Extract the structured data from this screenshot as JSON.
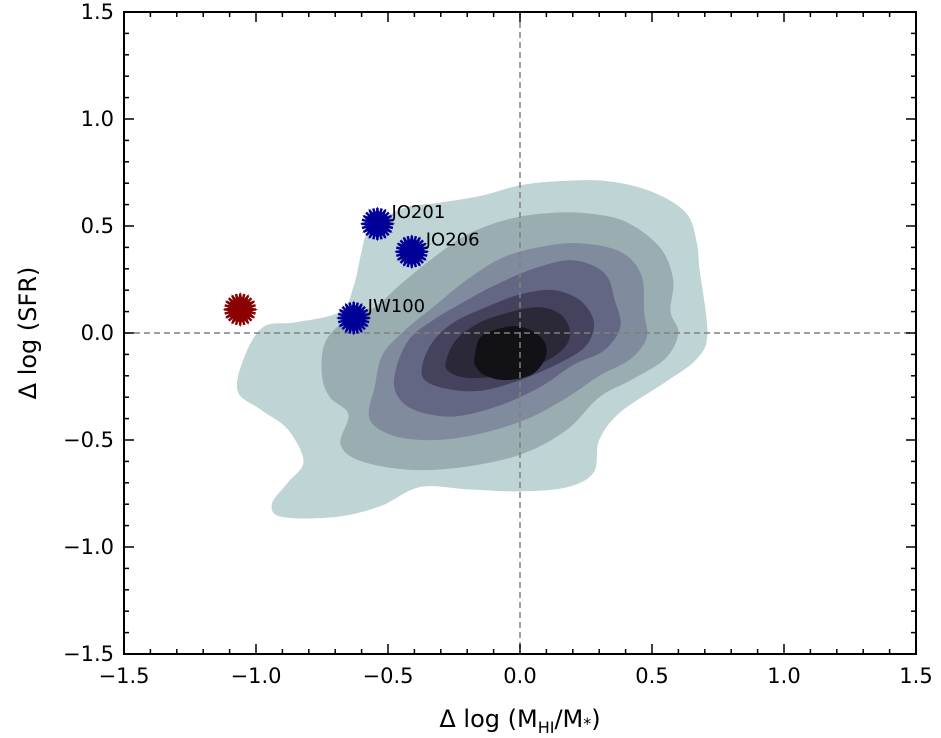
{
  "chart_data": {
    "type": "scatter",
    "title": "",
    "xlabel": {
      "prefix": "Δ log (M",
      "sub": "HI",
      "suffix": "/M",
      "sub2": "*",
      "close": ")"
    },
    "ylabel": "Δ log (SFR)",
    "xlim": [
      -1.5,
      1.5
    ],
    "ylim": [
      -1.5,
      1.5
    ],
    "xticks": [
      -1.5,
      -1.0,
      -0.5,
      0.0,
      0.5,
      1.0,
      1.5
    ],
    "yticks": [
      -1.5,
      -1.0,
      -0.5,
      0.0,
      0.5,
      1.0,
      1.5
    ],
    "xtick_labels": [
      "−1.5",
      "−1.0",
      "−0.5",
      "0.0",
      "0.5",
      "1.0",
      "1.5"
    ],
    "ytick_labels": [
      "−1.5",
      "−1.0",
      "−0.5",
      "0.0",
      "0.5",
      "1.0",
      "1.5"
    ],
    "reference_lines": {
      "x": 0.0,
      "y": 0.0,
      "style": "dashed",
      "color": "#808080"
    },
    "contour_colors": [
      "#bfd4d4",
      "#9aadb1",
      "#808b9d",
      "#646783",
      "#45425d",
      "#2b2837",
      "#121115"
    ],
    "contour_levels": [
      {
        "level": 1,
        "polygon": [
          [
            -1.07,
            -0.27
          ],
          [
            -1.04,
            -0.1
          ],
          [
            -0.97,
            0.03
          ],
          [
            -0.85,
            0.05
          ],
          [
            -0.68,
            0.1
          ],
          [
            -0.63,
            0.22
          ],
          [
            -0.6,
            0.38
          ],
          [
            -0.57,
            0.48
          ],
          [
            -0.45,
            0.58
          ],
          [
            -0.3,
            0.61
          ],
          [
            -0.15,
            0.64
          ],
          [
            0.0,
            0.69
          ],
          [
            0.15,
            0.71
          ],
          [
            0.33,
            0.71
          ],
          [
            0.5,
            0.66
          ],
          [
            0.63,
            0.56
          ],
          [
            0.67,
            0.42
          ],
          [
            0.68,
            0.3
          ],
          [
            0.71,
            0.0
          ],
          [
            0.67,
            -0.12
          ],
          [
            0.55,
            -0.23
          ],
          [
            0.38,
            -0.37
          ],
          [
            0.3,
            -0.5
          ],
          [
            0.28,
            -0.65
          ],
          [
            0.18,
            -0.72
          ],
          [
            0.0,
            -0.74
          ],
          [
            -0.2,
            -0.73
          ],
          [
            -0.38,
            -0.72
          ],
          [
            -0.53,
            -0.81
          ],
          [
            -0.7,
            -0.86
          ],
          [
            -0.9,
            -0.86
          ],
          [
            -0.94,
            -0.8
          ],
          [
            -0.88,
            -0.7
          ],
          [
            -0.82,
            -0.6
          ],
          [
            -0.88,
            -0.45
          ],
          [
            -0.98,
            -0.36
          ]
        ]
      },
      {
        "level": 2,
        "polygon": [
          [
            -0.75,
            -0.2
          ],
          [
            -0.74,
            -0.05
          ],
          [
            -0.67,
            0.05
          ],
          [
            -0.55,
            0.12
          ],
          [
            -0.45,
            0.23
          ],
          [
            -0.33,
            0.35
          ],
          [
            -0.2,
            0.46
          ],
          [
            -0.05,
            0.53
          ],
          [
            0.1,
            0.56
          ],
          [
            0.25,
            0.56
          ],
          [
            0.4,
            0.52
          ],
          [
            0.53,
            0.4
          ],
          [
            0.58,
            0.25
          ],
          [
            0.57,
            0.1
          ],
          [
            0.6,
            0.0
          ],
          [
            0.55,
            -0.12
          ],
          [
            0.42,
            -0.22
          ],
          [
            0.3,
            -0.3
          ],
          [
            0.18,
            -0.45
          ],
          [
            0.02,
            -0.56
          ],
          [
            -0.18,
            -0.62
          ],
          [
            -0.4,
            -0.64
          ],
          [
            -0.6,
            -0.6
          ],
          [
            -0.68,
            -0.52
          ],
          [
            -0.65,
            -0.38
          ],
          [
            -0.72,
            -0.3
          ]
        ]
      },
      {
        "level": 3,
        "polygon": [
          [
            -0.55,
            -0.25
          ],
          [
            -0.52,
            -0.1
          ],
          [
            -0.43,
            0.02
          ],
          [
            -0.32,
            0.13
          ],
          [
            -0.2,
            0.25
          ],
          [
            -0.07,
            0.35
          ],
          [
            0.07,
            0.4
          ],
          [
            0.22,
            0.42
          ],
          [
            0.38,
            0.38
          ],
          [
            0.46,
            0.27
          ],
          [
            0.47,
            0.1
          ],
          [
            0.48,
            -0.02
          ],
          [
            0.42,
            -0.12
          ],
          [
            0.3,
            -0.2
          ],
          [
            0.18,
            -0.3
          ],
          [
            0.03,
            -0.4
          ],
          [
            -0.15,
            -0.47
          ],
          [
            -0.32,
            -0.5
          ],
          [
            -0.48,
            -0.48
          ],
          [
            -0.57,
            -0.4
          ]
        ]
      },
      {
        "level": 4,
        "polygon": [
          [
            -0.47,
            -0.17
          ],
          [
            -0.42,
            -0.03
          ],
          [
            -0.33,
            0.06
          ],
          [
            -0.22,
            0.14
          ],
          [
            -0.1,
            0.22
          ],
          [
            0.05,
            0.3
          ],
          [
            0.2,
            0.34
          ],
          [
            0.32,
            0.28
          ],
          [
            0.36,
            0.15
          ],
          [
            0.38,
            0.03
          ],
          [
            0.32,
            -0.08
          ],
          [
            0.2,
            -0.15
          ],
          [
            0.08,
            -0.25
          ],
          [
            -0.08,
            -0.34
          ],
          [
            -0.25,
            -0.39
          ],
          [
            -0.4,
            -0.36
          ],
          [
            -0.47,
            -0.28
          ]
        ]
      },
      {
        "level": 5,
        "polygon": [
          [
            -0.37,
            -0.15
          ],
          [
            -0.33,
            -0.04
          ],
          [
            -0.25,
            0.05
          ],
          [
            -0.13,
            0.12
          ],
          [
            0.0,
            0.18
          ],
          [
            0.13,
            0.2
          ],
          [
            0.23,
            0.15
          ],
          [
            0.28,
            0.05
          ],
          [
            0.25,
            -0.06
          ],
          [
            0.15,
            -0.14
          ],
          [
            0.0,
            -0.22
          ],
          [
            -0.15,
            -0.27
          ],
          [
            -0.28,
            -0.26
          ],
          [
            -0.36,
            -0.22
          ]
        ]
      },
      {
        "level": 6,
        "polygon": [
          [
            -0.28,
            -0.13
          ],
          [
            -0.24,
            -0.03
          ],
          [
            -0.15,
            0.05
          ],
          [
            -0.03,
            0.1
          ],
          [
            0.08,
            0.12
          ],
          [
            0.16,
            0.08
          ],
          [
            0.19,
            -0.01
          ],
          [
            0.15,
            -0.09
          ],
          [
            0.05,
            -0.16
          ],
          [
            -0.08,
            -0.2
          ],
          [
            -0.2,
            -0.21
          ],
          [
            -0.27,
            -0.18
          ]
        ]
      },
      {
        "level": 7,
        "polygon": [
          [
            -0.17,
            -0.1
          ],
          [
            -0.15,
            -0.02
          ],
          [
            -0.08,
            0.02
          ],
          [
            0.0,
            0.03
          ],
          [
            0.08,
            -0.02
          ],
          [
            0.1,
            -0.1
          ],
          [
            0.05,
            -0.19
          ],
          [
            -0.05,
            -0.22
          ],
          [
            -0.13,
            -0.2
          ],
          [
            -0.17,
            -0.15
          ]
        ]
      }
    ],
    "series": [
      {
        "name": "JO201",
        "x": -0.54,
        "y": 0.51,
        "color": "#000099",
        "label": "JO201"
      },
      {
        "name": "JO206",
        "x": -0.41,
        "y": 0.38,
        "color": "#000099",
        "label": "JO206"
      },
      {
        "name": "JW100",
        "x": -0.63,
        "y": 0.07,
        "color": "#000099",
        "label": "JW100"
      },
      {
        "name": "unlabeled",
        "x": -1.06,
        "y": 0.11,
        "color": "#8b0000",
        "label": ""
      }
    ]
  }
}
